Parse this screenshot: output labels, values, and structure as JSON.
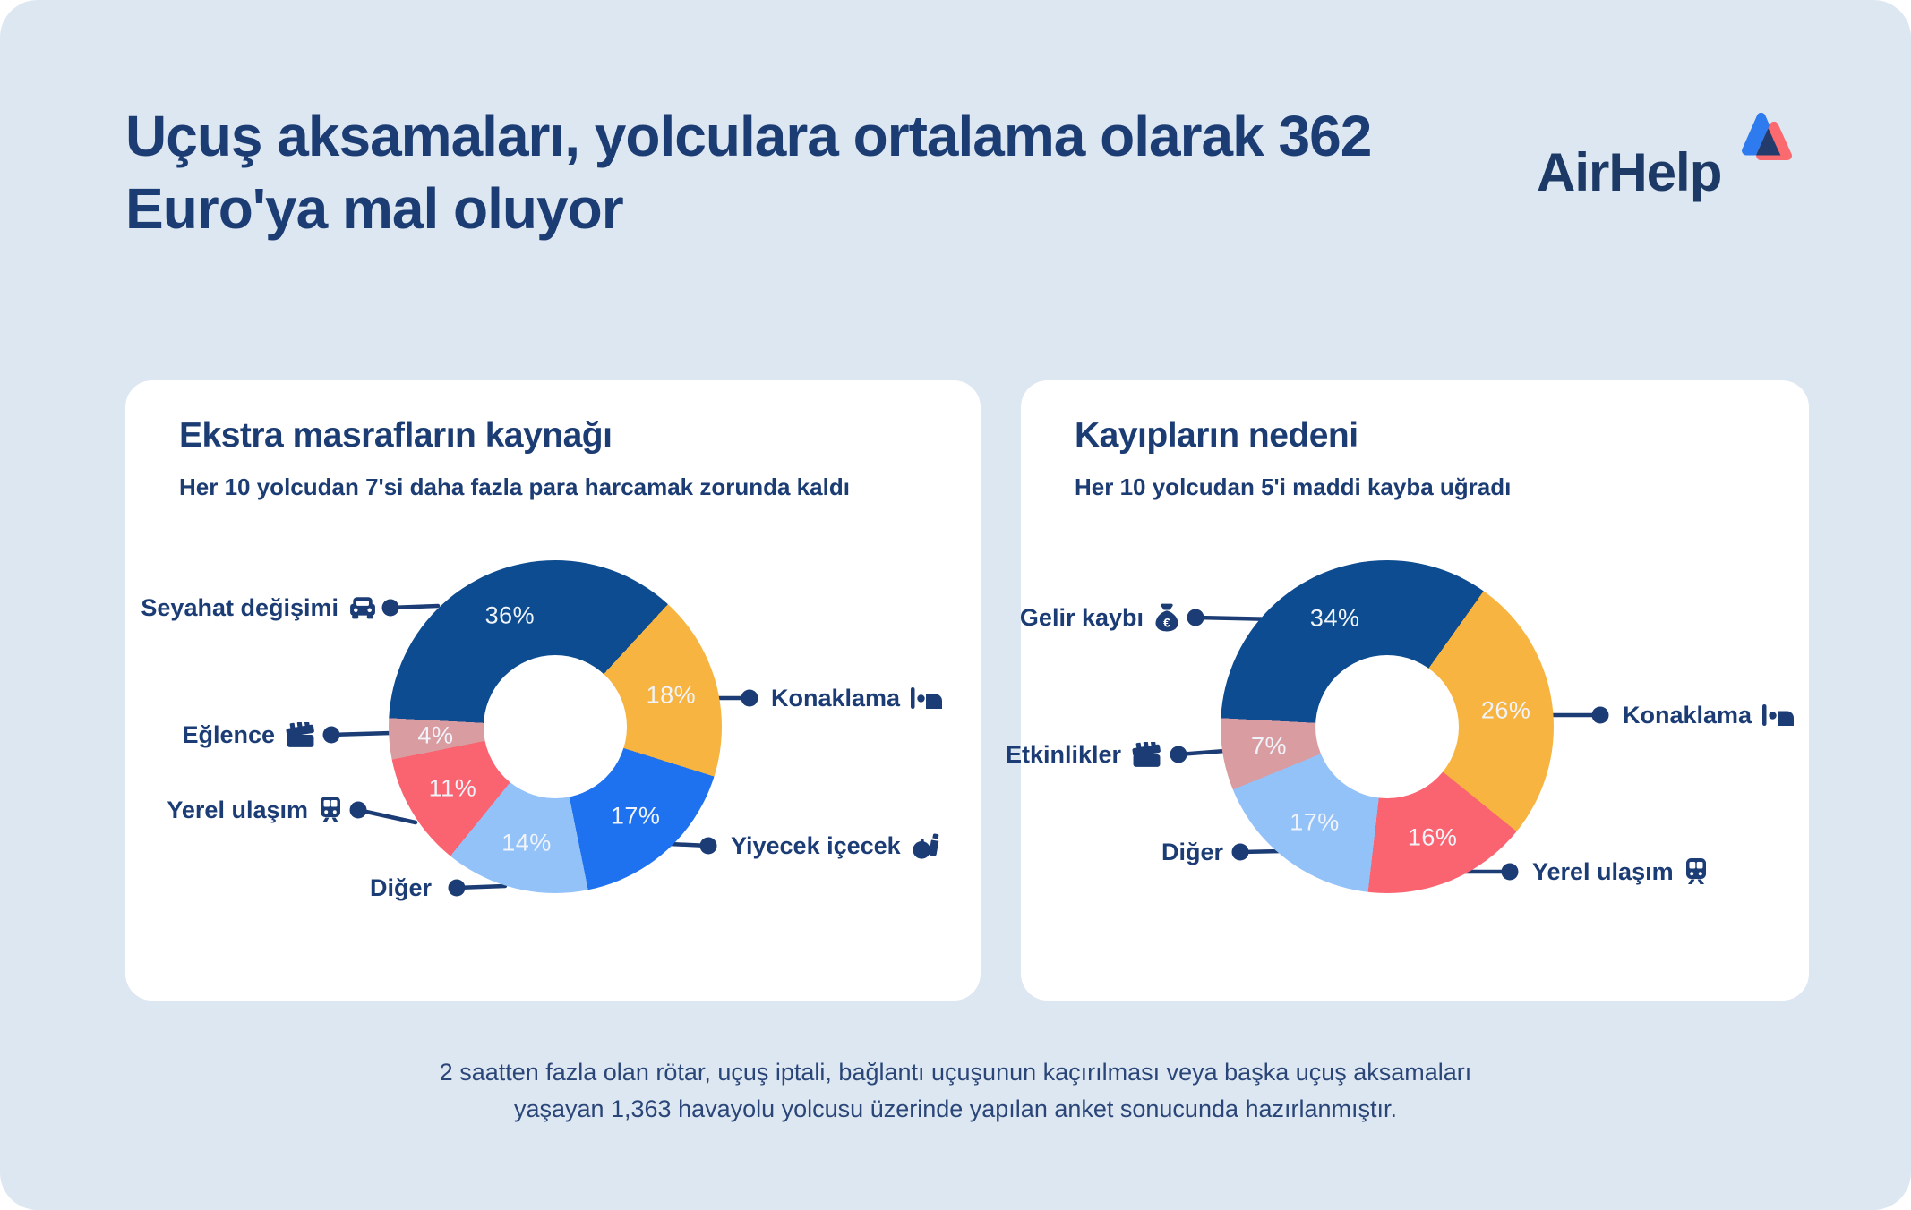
{
  "page": {
    "title": "Uçuş aksamaları, yolculara ortalama olarak 362 Euro'ya mal oluyor",
    "logo_text": "AirHelp",
    "footer_line1": "2 saatten fazla olan rötar, uçuş iptali, bağlantı uçuşunun kaçırılması veya başka uçuş aksamaları",
    "footer_line2": "yaşayan 1,363 havayolu yolcusu üzerinde yapılan anket sonucunda hazırlanmıştır.",
    "colors": {
      "background": "#DDE7F1",
      "card": "#FFFFFF",
      "navy_text": "#1B3C74",
      "logo_blue": "#2E7BF0",
      "logo_red": "#FA6A6F"
    }
  },
  "chart_data": [
    {
      "type": "pie",
      "style": "donut",
      "title": "Ekstra masrafların kaynağı",
      "subtitle": "Her 10 yolcudan 7'si daha fazla para harcamak zorunda kaldı",
      "start_angle_deg": -87,
      "slices": [
        {
          "label": "Seyahat değişimi",
          "value": 36,
          "color": "#0D4C90",
          "icon": "car-icon"
        },
        {
          "label": "Konaklama",
          "value": 18,
          "color": "#F7B440",
          "icon": "bed-icon"
        },
        {
          "label": "Yiyecek içecek",
          "value": 17,
          "color": "#1E71EF",
          "icon": "food-drink-icon"
        },
        {
          "label": "Diğer",
          "value": 14,
          "color": "#93C2F9",
          "icon": null
        },
        {
          "label": "Yerel ulaşım",
          "value": 11,
          "color": "#FA6470",
          "icon": "train-icon"
        },
        {
          "label": "Eğlence",
          "value": 4,
          "color": "#D99CA0",
          "icon": "clapperboard-icon"
        }
      ]
    },
    {
      "type": "pie",
      "style": "donut",
      "title": "Kayıpların nedeni",
      "subtitle": "Her 10 yolcudan 5'i maddi kayba uğradı",
      "start_angle_deg": -87,
      "slices": [
        {
          "label": "Gelir kaybı",
          "value": 34,
          "color": "#0D4C90",
          "icon": "moneybag-icon"
        },
        {
          "label": "Konaklama",
          "value": 26,
          "color": "#F7B440",
          "icon": "bed-icon"
        },
        {
          "label": "Yerel ulaşım",
          "value": 16,
          "color": "#FA6470",
          "icon": "train-icon"
        },
        {
          "label": "Diğer",
          "value": 17,
          "color": "#93C2F9",
          "icon": null
        },
        {
          "label": "Etkinlikler",
          "value": 7,
          "color": "#D99CA0",
          "icon": "clapperboard-icon"
        }
      ]
    }
  ]
}
